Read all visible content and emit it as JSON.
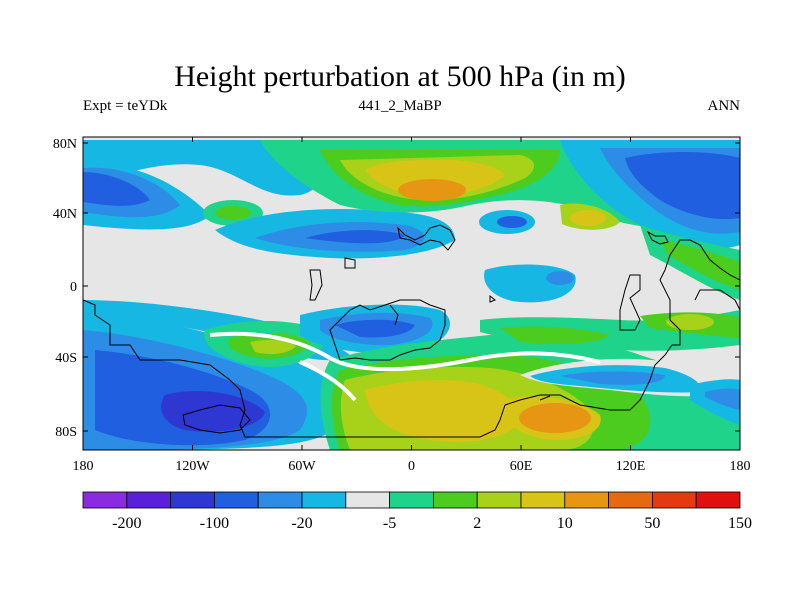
{
  "title": "Height perturbation at 500 hPa (in m)",
  "subtitle_left": "Expt = teYDk",
  "subtitle_center": "441_2_MaBP",
  "subtitle_right": "ANN",
  "lat_ticks": [
    "80N",
    "40N",
    "0",
    "40S",
    "80S"
  ],
  "lon_ticks": [
    "180",
    "120W",
    "60W",
    "0",
    "60E",
    "120E",
    "180"
  ],
  "colorbar": {
    "colors": [
      "#8a2be2",
      "#5a1fd8",
      "#2f37d2",
      "#1f5fe0",
      "#2d8de6",
      "#17b7e4",
      "#e6e6e6",
      "#1fd38a",
      "#4ccc1e",
      "#a8d11a",
      "#d8c417",
      "#e79613",
      "#e56a0f",
      "#e33a10",
      "#e0100f"
    ],
    "tick_labels": [
      "-200",
      "-100",
      "-20",
      "-5",
      "2",
      "10",
      "50",
      "150"
    ]
  },
  "map_colors": {
    "background": "#e6e6e6",
    "coast": "#000000"
  }
}
